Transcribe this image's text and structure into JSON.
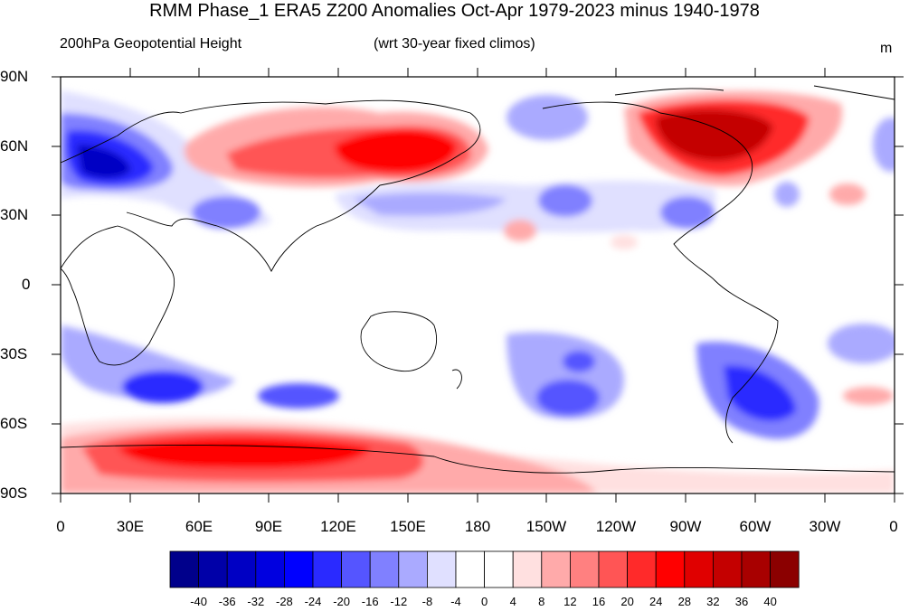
{
  "title": "RMM Phase_1 ERA5 Z200 Anomalies Oct-Apr 1979-2023 minus 1940-1978",
  "subtitle_left": "200hPa Geopotential Height",
  "subtitle_center": "(wrt 30-year fixed climos)",
  "units": "m",
  "lat_labels": [
    "90N",
    "60N",
    "30N",
    "0",
    "30S",
    "60S",
    "90S"
  ],
  "lon_labels": [
    "0",
    "30E",
    "60E",
    "90E",
    "120E",
    "150E",
    "180",
    "150W",
    "120W",
    "90W",
    "60W",
    "30W",
    "0"
  ],
  "colorbar": {
    "labels": [
      "-40",
      "-36",
      "-32",
      "-28",
      "-24",
      "-20",
      "-16",
      "-12",
      "-8",
      "-4",
      "0",
      "4",
      "8",
      "12",
      "16",
      "20",
      "24",
      "28",
      "32",
      "36",
      "40"
    ],
    "colors": [
      "#00008b",
      "#0000a8",
      "#0000c4",
      "#0000e0",
      "#0000ff",
      "#2a2aff",
      "#5555ff",
      "#8080ff",
      "#aaaaff",
      "#e0e0ff",
      "#ffffff",
      "#ffffff",
      "#ffe0e0",
      "#ffaaaa",
      "#ff8080",
      "#ff5555",
      "#ff2a2a",
      "#ff0000",
      "#e00000",
      "#c40000",
      "#a80000",
      "#8b0000"
    ]
  }
}
